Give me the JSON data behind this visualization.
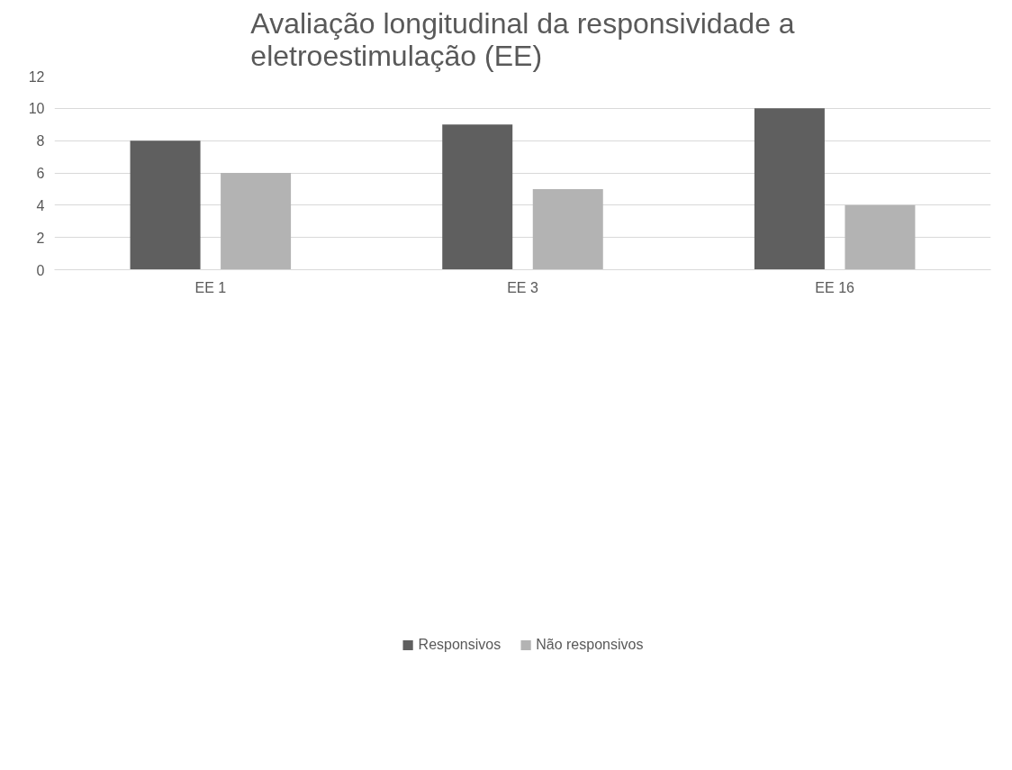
{
  "chart_data": {
    "type": "bar",
    "title": "Avaliação longitudinal da responsividade a\neletroestimulação (EE)",
    "categories": [
      "EE 1",
      "EE 3",
      "EE 16"
    ],
    "series": [
      {
        "name": "Responsivos",
        "color": "#5f5f5f",
        "values": [
          8,
          9,
          10
        ]
      },
      {
        "name": "Não responsivos",
        "color": "#b3b3b3",
        "values": [
          6,
          5,
          4
        ]
      }
    ],
    "ylim": [
      0,
      12
    ],
    "yticks": [
      0,
      2,
      4,
      6,
      8,
      10,
      12
    ],
    "grid": "y",
    "legend": "bottom"
  }
}
